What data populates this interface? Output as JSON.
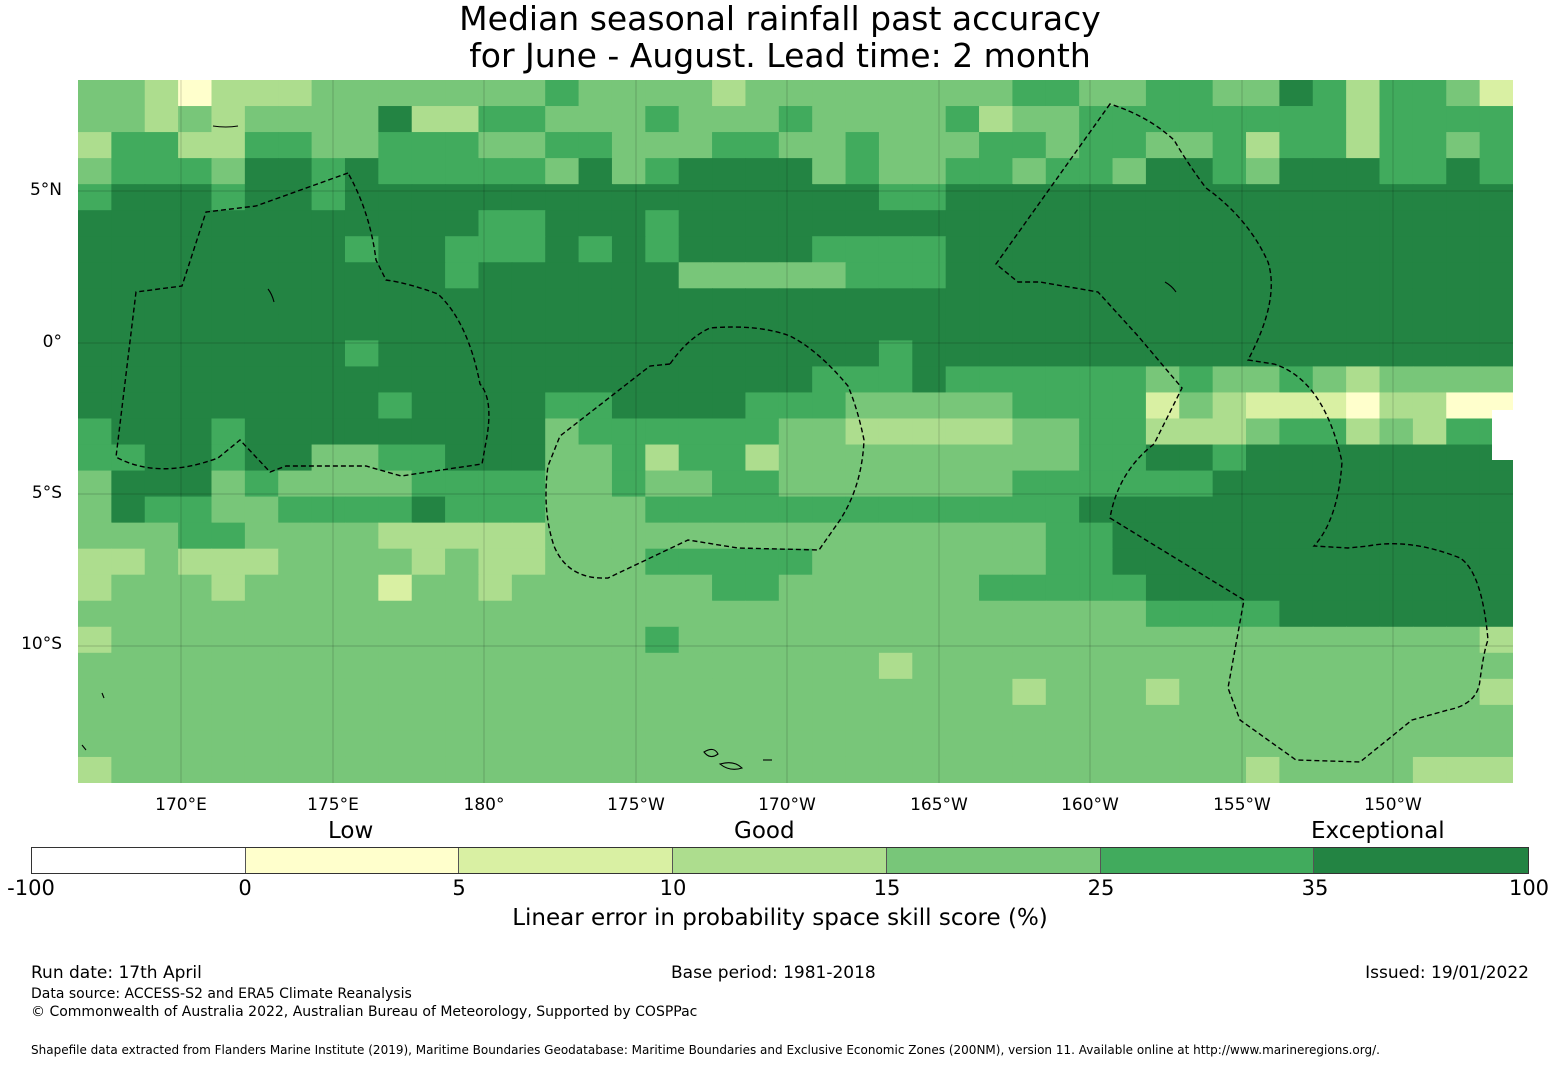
{
  "title": {
    "line1": "Median seasonal rainfall past accuracy",
    "line2": "for June - August. Lead time: 2 month"
  },
  "map": {
    "lat_ticks": [
      "5°N",
      "0°",
      "5°S",
      "10°S"
    ],
    "lon_ticks": [
      "170°E",
      "175°E",
      "180°",
      "175°W",
      "170°W",
      "165°W",
      "160°W",
      "155°W",
      "150°W"
    ],
    "colors": {
      "c0": "#ffffcc",
      "c1": "#d9f0a3",
      "c2": "#addd8e",
      "c3": "#78c679",
      "c4": "#41ab5d",
      "c5": "#238443",
      "none": "#ffffff"
    },
    "skill_rows": [
      "3320222333333343333233333333443344335424431",
      "3323233335224433343334333342334444444424444",
      "2442244334443344333443343334434433424424434",
      "3444355454444435345555343344344355435554454",
      "4555455455555555555555554455555555555555555",
      "5555555555554455545555555555555555555555555",
      "5555555545544454545555444455555555555555555",
      "5555555555545555553333344455555555555555555",
      "5555555555555555555555555555555555555555555",
      "5555555555555555555555555555555555555555555",
      "5555555545555555555555554555555555555555555",
      "5555555555555555555555444544444434334323333",
      "5555555554555544555544433333444413211102200",
      "4555455555555534444443322222334422234423244",
      "4455455334455533424423333333334455455555555",
      "3555343333444433433443333333444444555555555",
      "3544334444544433344444444444445555555555555",
      "3334433332222233333333333333344555555555555",
      "2232223333232233344444333333344555555555555",
      "2333233331332333333443333334444455555555555",
      "3333333333333333333333333333333344445555555",
      "2333333333333333343333333333333333333333332",
      "3333333333333333333333332333333333333333333",
      "3333333333333333333333333333233323333333332",
      "3333333333333333333333333333333333333333333",
      "3333333333333333333333333333333333333333333",
      "2333333333333333333333333333333333323333222"
    ],
    "eez_regions": [
      "tuvalu",
      "tokelau",
      "kiribati-phoenix",
      "kiribati-line",
      "cook-islands"
    ]
  },
  "legend": {
    "categories": [
      "Low",
      "Good",
      "Exceptional"
    ],
    "ticks": [
      "-100",
      "0",
      "5",
      "10",
      "15",
      "25",
      "35",
      "100"
    ],
    "segment_colors": [
      "#ffffff",
      "#ffffcc",
      "#d9f0a3",
      "#addd8e",
      "#78c679",
      "#41ab5d",
      "#238443"
    ],
    "label": "Linear error in probability space skill score (%)"
  },
  "footer": {
    "run_date": "Run date: 17th April",
    "base_period": "Base period: 1981-2018",
    "issued": "Issued: 19/01/2022",
    "data_source": "Data source: ACCESS-S2 and ERA5 Climate Reanalysis",
    "copyright": "© Commonwealth of Australia 2022, Australian Bureau of Meteorology, Supported by COSPPac",
    "shapefile": "Shapefile data extracted from Flanders Marine Institute (2019), Maritime Boundaries Geodatabase: Maritime Boundaries and Exclusive Economic Zones (200NM), version 11. Available online at http://www.marineregions.org/."
  }
}
